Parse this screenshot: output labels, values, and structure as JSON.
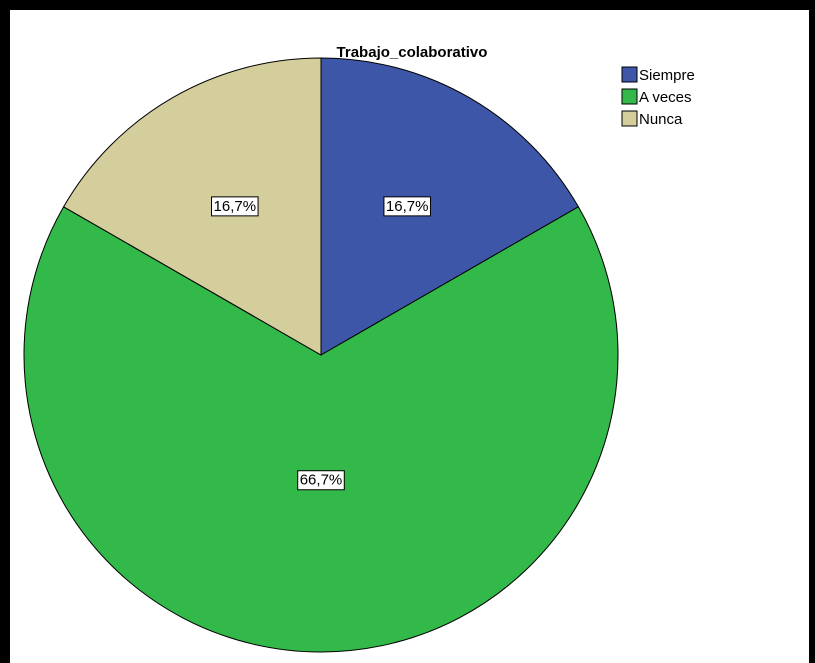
{
  "chart_data": {
    "type": "pie",
    "title": "Trabajo_colaborativo",
    "categories": [
      "Siempre",
      "A veces",
      "Nunca"
    ],
    "values": [
      16.7,
      66.7,
      16.7
    ],
    "data_labels": [
      "16,7%",
      "66,7%",
      "16,7%"
    ],
    "colors": [
      "#3d56a8",
      "#33b84a",
      "#d4cd9c"
    ],
    "legend_position": "top-right",
    "start_angle": "12 o'clock, clockwise"
  }
}
